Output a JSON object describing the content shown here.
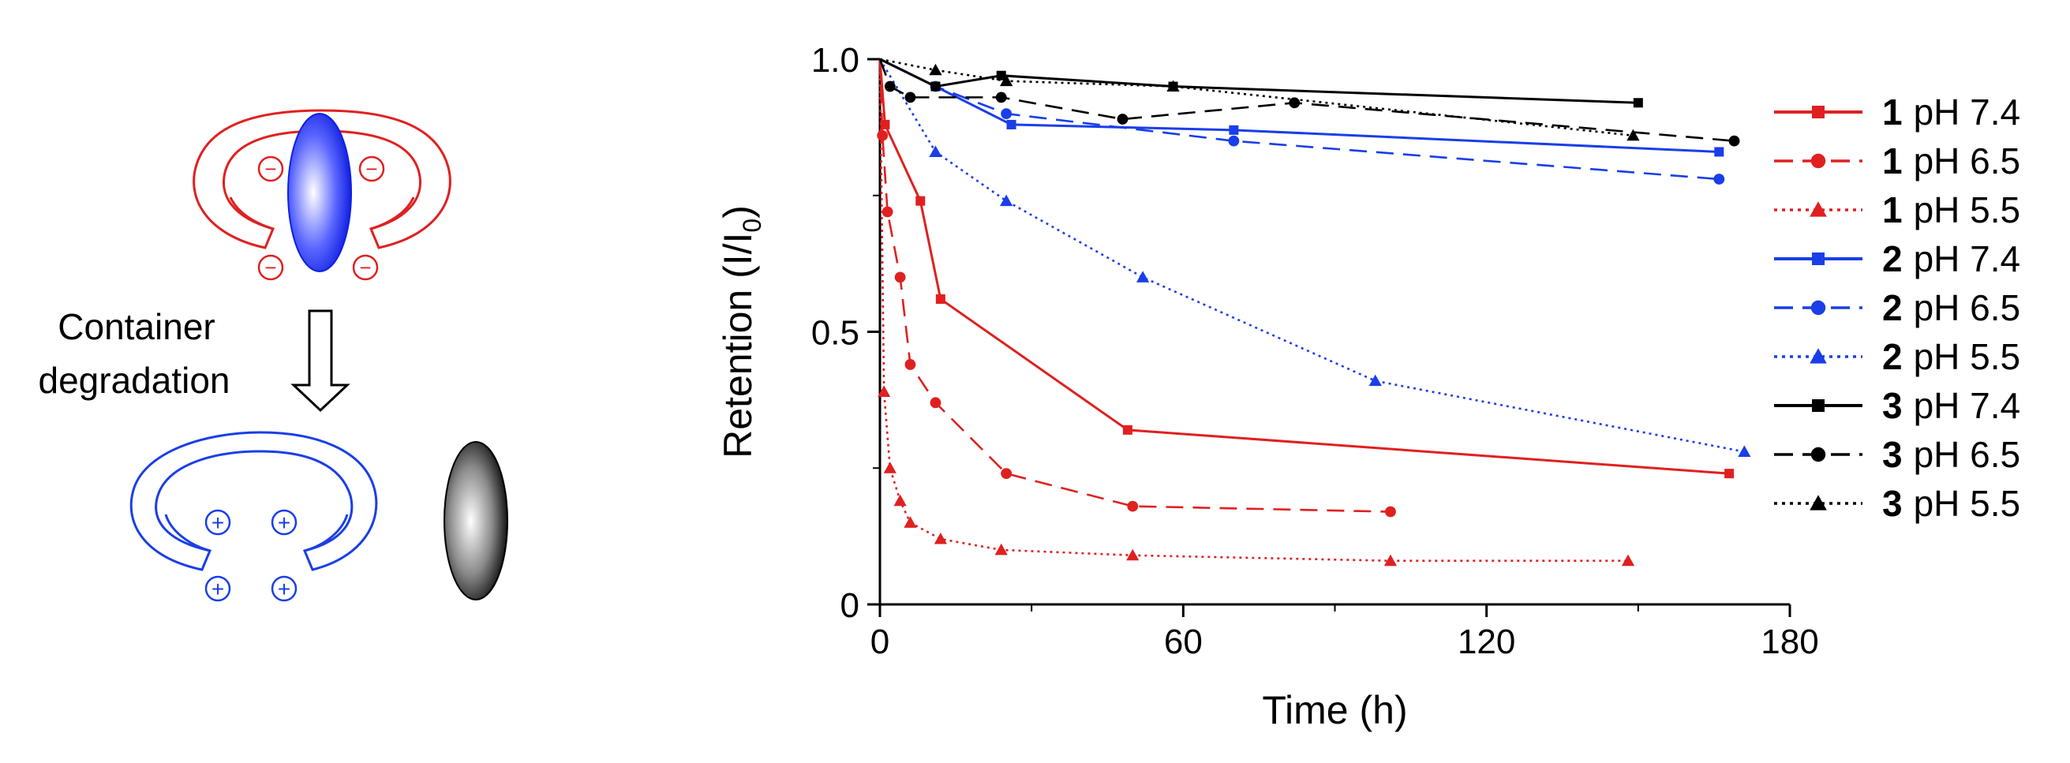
{
  "diagram": {
    "arrow_label_line1": "Container",
    "arrow_label_line2": "degradation",
    "neg_sign": "−",
    "pos_sign": "+"
  },
  "chart_data": {
    "type": "line",
    "title": "",
    "xlabel": "Time (h)",
    "ylabel": "Retention (I/I",
    "ylabel_sub": "0",
    "ylabel_suffix": ")",
    "xlim": [
      0,
      180
    ],
    "ylim": [
      0,
      1.0
    ],
    "xticks": [
      0,
      60,
      120,
      180
    ],
    "xtick_labels": [
      "0",
      "60",
      "120",
      "180"
    ],
    "yticks": [
      0,
      0.5,
      1.0
    ],
    "ytick_labels": [
      "0",
      "0.5",
      "1.0"
    ],
    "grid": false,
    "legend_position": "right",
    "series": [
      {
        "id": "1",
        "label": "pH 7.4",
        "color": "#e02020",
        "dash": "solid",
        "marker": "square",
        "x": [
          0,
          1,
          8,
          12,
          49,
          168
        ],
        "y": [
          1.0,
          0.88,
          0.74,
          0.56,
          0.32,
          0.24
        ]
      },
      {
        "id": "1",
        "label": "pH 6.5",
        "color": "#e02020",
        "dash": "dashed",
        "marker": "circle",
        "x": [
          0,
          0.5,
          1.5,
          4,
          6,
          11,
          25,
          50,
          101
        ],
        "y": [
          1.0,
          0.86,
          0.72,
          0.6,
          0.44,
          0.37,
          0.24,
          0.18,
          0.17
        ]
      },
      {
        "id": "1",
        "label": "pH 5.5",
        "color": "#e02020",
        "dash": "dotted",
        "marker": "triangle",
        "x": [
          0,
          0.8,
          2,
          4,
          6,
          12,
          24,
          50,
          101,
          148
        ],
        "y": [
          1.0,
          0.39,
          0.25,
          0.19,
          0.15,
          0.12,
          0.1,
          0.09,
          0.08,
          0.08
        ]
      },
      {
        "id": "2",
        "label": "pH 7.4",
        "color": "#1a3ee8",
        "dash": "solid",
        "marker": "square",
        "x": [
          0,
          11,
          26,
          70,
          166
        ],
        "y": [
          1.0,
          0.95,
          0.88,
          0.87,
          0.83
        ]
      },
      {
        "id": "2",
        "label": "pH 6.5",
        "color": "#1a3ee8",
        "dash": "dashed",
        "marker": "circle",
        "x": [
          0,
          11,
          25,
          70,
          166
        ],
        "y": [
          1.0,
          0.95,
          0.9,
          0.85,
          0.78
        ]
      },
      {
        "id": "2",
        "label": "pH 5.5",
        "color": "#1a3ee8",
        "dash": "dotted",
        "marker": "triangle",
        "x": [
          0,
          11,
          25,
          52,
          98,
          171
        ],
        "y": [
          1.0,
          0.83,
          0.74,
          0.6,
          0.41,
          0.28
        ]
      },
      {
        "id": "3",
        "label": "pH 7.4",
        "color": "#000000",
        "dash": "solid",
        "marker": "square",
        "x": [
          0,
          11,
          24,
          58,
          150
        ],
        "y": [
          1.0,
          0.95,
          0.97,
          0.95,
          0.92
        ]
      },
      {
        "id": "3",
        "label": "pH 6.5",
        "color": "#000000",
        "dash": "dashed",
        "marker": "circle",
        "x": [
          0,
          2,
          6,
          24,
          48,
          82,
          169
        ],
        "y": [
          1.0,
          0.95,
          0.93,
          0.93,
          0.89,
          0.92,
          0.85
        ]
      },
      {
        "id": "3",
        "label": "pH 5.5",
        "color": "#000000",
        "dash": "dotted",
        "marker": "triangle",
        "x": [
          0,
          11,
          25,
          58,
          149
        ],
        "y": [
          1.0,
          0.98,
          0.96,
          0.95,
          0.86
        ]
      }
    ]
  }
}
